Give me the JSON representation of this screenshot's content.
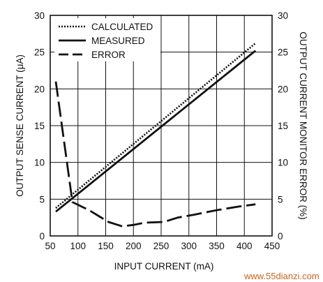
{
  "chart_data": {
    "type": "line",
    "xlabel": "INPUT CURRENT (mA)",
    "ylabel": "OUTPUT SENSE CURRENT (μA)",
    "y2label": "OUTPUT CURRENT MONITOR ERROR (%)",
    "xlim": [
      50,
      450
    ],
    "ylim": [
      0,
      30
    ],
    "y2lim": [
      0,
      30
    ],
    "x_ticks": [
      50,
      100,
      150,
      200,
      250,
      300,
      350,
      400,
      450
    ],
    "y_ticks": [
      0,
      5,
      10,
      15,
      20,
      25,
      30
    ],
    "y2_ticks": [
      0,
      5,
      10,
      15,
      20,
      25,
      30
    ],
    "grid": true,
    "legend_position": "top-left",
    "series": [
      {
        "name": "CALCULATED",
        "style": "dotted",
        "axis": "left",
        "x": [
          60,
          420
        ],
        "y": [
          3.8,
          26.2
        ]
      },
      {
        "name": "MEASURED",
        "style": "solid",
        "axis": "left",
        "x": [
          60,
          420
        ],
        "y": [
          3.3,
          25.2
        ]
      },
      {
        "name": "ERROR",
        "style": "dashed",
        "axis": "right",
        "x": [
          60,
          90,
          120,
          155,
          180,
          200,
          220,
          255,
          280,
          310,
          350,
          390,
          420
        ],
        "y": [
          21,
          4.6,
          3.5,
          1.9,
          1.3,
          1.5,
          1.8,
          1.9,
          2.5,
          2.9,
          3.5,
          4,
          4.3
        ]
      }
    ]
  },
  "watermark": "www.55dianzi.com",
  "colors": {
    "line": "#111111",
    "grid": "#111111",
    "watermark": "#c8641e"
  }
}
